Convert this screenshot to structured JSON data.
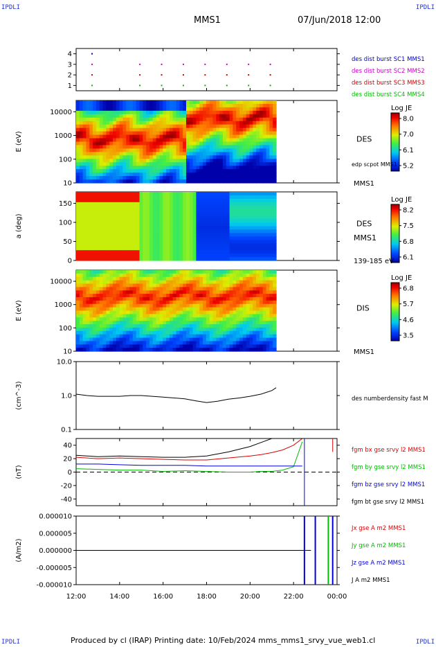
{
  "corner_labels": {
    "tl": "IPDLI",
    "tr": "IPDLI",
    "bl": "IPDLI",
    "br": "IPDLI"
  },
  "header": {
    "spacecraft": "MMS1",
    "datetime": "07/Jun/2018 12:00"
  },
  "footer": {
    "text": "Produced by cl (IRAP)   Printing date: 10/Feb/2024   mms_mms1_srvy_vue_web1.cl"
  },
  "chart_data": [
    {
      "type": "scatter",
      "name": "burst availability",
      "yticks": [
        "1",
        "2",
        "3",
        "4"
      ],
      "legend": [
        {
          "label": "des dist burst SC1 MMS1",
          "color": "#0000cc"
        },
        {
          "label": "des dist burst SC2 MMS2",
          "color": "#cc00cc"
        },
        {
          "label": "des dist burst SC3 MMS3",
          "color": "#cc0000"
        },
        {
          "label": "des dist burst SC4 MMS4",
          "color": "#00bb00"
        }
      ]
    },
    {
      "type": "heatmap",
      "ylabel": "E (eV)",
      "yticks": [
        "10",
        "100",
        "1000",
        "10000"
      ],
      "side_label": "DES",
      "side_note": "edp scpot MMS1",
      "side_bottom": "MMS1",
      "colorbar": {
        "title": "Log JE",
        "ticks": [
          "8.0",
          "7.0",
          "6.1",
          "5.2"
        ]
      }
    },
    {
      "type": "heatmap",
      "ylabel": "a (deg)",
      "yticks": [
        "0",
        "50",
        "100",
        "150"
      ],
      "side_label": "DES",
      "side_mid": "MMS1",
      "side_bottom": "139-185 eV",
      "colorbar": {
        "title": "Log JE",
        "ticks": [
          "8.2",
          "7.5",
          "6.8",
          "6.1"
        ]
      }
    },
    {
      "type": "heatmap",
      "ylabel": "E (eV)",
      "yticks": [
        "10",
        "100",
        "1000",
        "10000"
      ],
      "side_label": "DIS",
      "side_bottom": "MMS1",
      "colorbar": {
        "title": "Log JE",
        "ticks": [
          "6.8",
          "5.7",
          "4.6",
          "3.5"
        ]
      }
    },
    {
      "type": "line",
      "ylabel": "(cm^-3)",
      "yticks": [
        "0.1",
        "1.0",
        "10.0"
      ],
      "legend": [
        {
          "label": "des numberdensity fast M",
          "color": "#000000"
        }
      ],
      "x": [
        12.0,
        12.5,
        13.0,
        13.5,
        14.0,
        14.5,
        15.0,
        15.5,
        16.0,
        16.5,
        17.0,
        17.5,
        18.0,
        18.5,
        19.0,
        19.5,
        20.0,
        20.5,
        21.0,
        21.2
      ],
      "y": [
        1.1,
        1.0,
        0.95,
        0.95,
        0.95,
        1.0,
        1.0,
        0.95,
        0.9,
        0.85,
        0.8,
        0.7,
        0.62,
        0.68,
        0.78,
        0.85,
        0.95,
        1.1,
        1.4,
        1.7
      ]
    },
    {
      "type": "line",
      "ylabel": "(nT)",
      "yticks": [
        "-40",
        "-20",
        "0",
        "20",
        "40"
      ],
      "ylim": [
        -50,
        50
      ],
      "legend": [
        {
          "label": "fgm bx gse srvy l2 MMS1",
          "color": "#dd0000"
        },
        {
          "label": "fgm by gse srvy l2 MMS1",
          "color": "#00bb00"
        },
        {
          "label": "fgm bz gse srvy l2 MMS1",
          "color": "#0000dd"
        },
        {
          "label": "fgm bt gse srvy l2 MMS1",
          "color": "#000000"
        }
      ],
      "x": [
        12,
        13,
        14,
        15,
        16,
        17,
        18,
        19,
        20,
        20.5,
        21,
        21.5,
        22,
        22.4
      ],
      "series": [
        {
          "name": "fgm bx gse srvy l2 MMS1",
          "values": [
            22,
            20,
            21,
            20,
            19,
            18,
            18,
            21,
            24,
            26,
            29,
            33,
            40,
            50
          ]
        },
        {
          "name": "fgm by gse srvy l2 MMS1",
          "values": [
            5,
            4,
            3,
            3,
            1,
            2,
            1,
            0,
            0,
            1,
            1,
            3,
            8,
            45
          ]
        },
        {
          "name": "fgm bz gse srvy l2 MMS1",
          "values": [
            12,
            12,
            11,
            10,
            10,
            10,
            9,
            9,
            9,
            9,
            9,
            9,
            9,
            9
          ]
        },
        {
          "name": "fgm bt gse srvy l2 MMS1",
          "values": [
            25,
            23,
            24,
            23,
            22,
            22,
            24,
            30,
            38,
            44,
            50,
            50,
            50,
            50
          ]
        }
      ]
    },
    {
      "type": "line",
      "ylabel": "(A/m2)",
      "yticks": [
        "-0.000010",
        "-0.000005",
        "0.000000",
        "0.000005",
        "0.000010"
      ],
      "ylim": [
        -1e-05,
        1e-05
      ],
      "legend": [
        {
          "label": "Jx gse A m2 MMS1",
          "color": "#dd0000"
        },
        {
          "label": "Jy gse A m2 MMS1",
          "color": "#00bb00"
        },
        {
          "label": "Jz gse A m2 MMS1",
          "color": "#0000dd"
        },
        {
          "label": "J A m2 MMS1",
          "color": "#000000"
        }
      ]
    }
  ],
  "xaxis": {
    "ticks": [
      "12:00",
      "14:00",
      "16:00",
      "18:00",
      "20:00",
      "22:00",
      "00:00"
    ]
  }
}
